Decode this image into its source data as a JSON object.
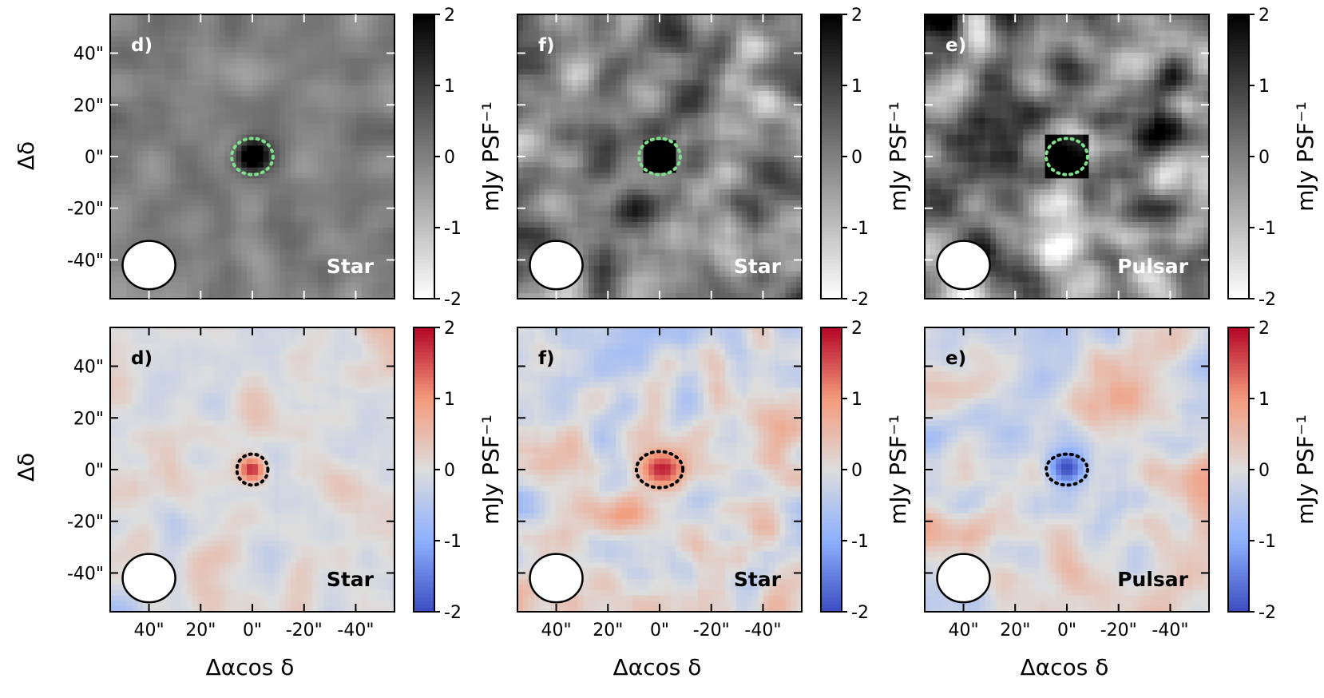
{
  "chart_data": {
    "type": "heatmap",
    "title": "",
    "xlabel": "Δαcos δ",
    "ylabel": "Δδ",
    "colorbar_label": "mJy PSF⁻¹",
    "x_range": [
      55,
      -55
    ],
    "y_range": [
      -55,
      55
    ],
    "x_ticks": [
      40,
      20,
      0,
      -20,
      -40
    ],
    "x_tick_labels": [
      "40\"",
      "20\"",
      "0\"",
      "-20\"",
      "-40\""
    ],
    "y_ticks": [
      40,
      20,
      0,
      -20,
      -40
    ],
    "y_tick_labels": [
      "40\"",
      "20\"",
      "0\"",
      "-20\"",
      "-40\""
    ],
    "colorbar_ticks": [
      2,
      1,
      0,
      -1,
      -2
    ],
    "colorbar_tick_labels": [
      "2",
      "1",
      "0",
      "-1",
      "-2"
    ],
    "color_range": [
      -2,
      2
    ],
    "beam": {
      "x": 40,
      "y": -42,
      "major": 12,
      "minor": 11,
      "label": "beam"
    },
    "rows": [
      {
        "colormap": "gray_r",
        "panels": [
          {
            "label": "d)",
            "type": "Star",
            "source_amp": 3.0,
            "source_size": 7,
            "source_shape": "circle",
            "noise_scale": 0.35,
            "marker": {
              "x": 0,
              "y": 0,
              "rx": 8,
              "ry": 7,
              "color": "#7ee08a"
            }
          },
          {
            "label": "f)",
            "type": "Star",
            "source_amp": 3.0,
            "source_size": 7,
            "source_shape": "square",
            "noise_scale": 1.0,
            "marker": {
              "x": 0,
              "y": 0,
              "rx": 8,
              "ry": 7,
              "color": "#7ee08a"
            }
          },
          {
            "label": "e)",
            "type": "Pulsar",
            "source_amp": 3.0,
            "source_size": 9,
            "source_shape": "square",
            "noise_scale": 1.5,
            "marker": {
              "x": 0,
              "y": 0,
              "rx": 8,
              "ry": 7,
              "color": "#7ee08a"
            }
          }
        ]
      },
      {
        "colormap": "coolwarm",
        "panels": [
          {
            "label": "d)",
            "type": "Star",
            "source_amp": 1.8,
            "source_size": 6,
            "source_shape": "circle",
            "noise_scale": 0.3,
            "marker": {
              "x": 0,
              "y": 0,
              "rx": 6,
              "ry": 6,
              "color": "#000000"
            }
          },
          {
            "label": "f)",
            "type": "Star",
            "source_amp": 1.8,
            "source_size": 8,
            "source_shape": "ellipse",
            "noise_scale": 0.55,
            "marker": {
              "x": 0,
              "y": 0,
              "rx": 9,
              "ry": 7,
              "color": "#000000"
            }
          },
          {
            "label": "e)",
            "type": "Pulsar",
            "source_amp": -1.8,
            "source_size": 8,
            "source_shape": "ellipse",
            "noise_scale": 0.55,
            "marker": {
              "x": 0,
              "y": 0,
              "rx": 8,
              "ry": 6,
              "color": "#000000"
            }
          }
        ]
      }
    ]
  }
}
